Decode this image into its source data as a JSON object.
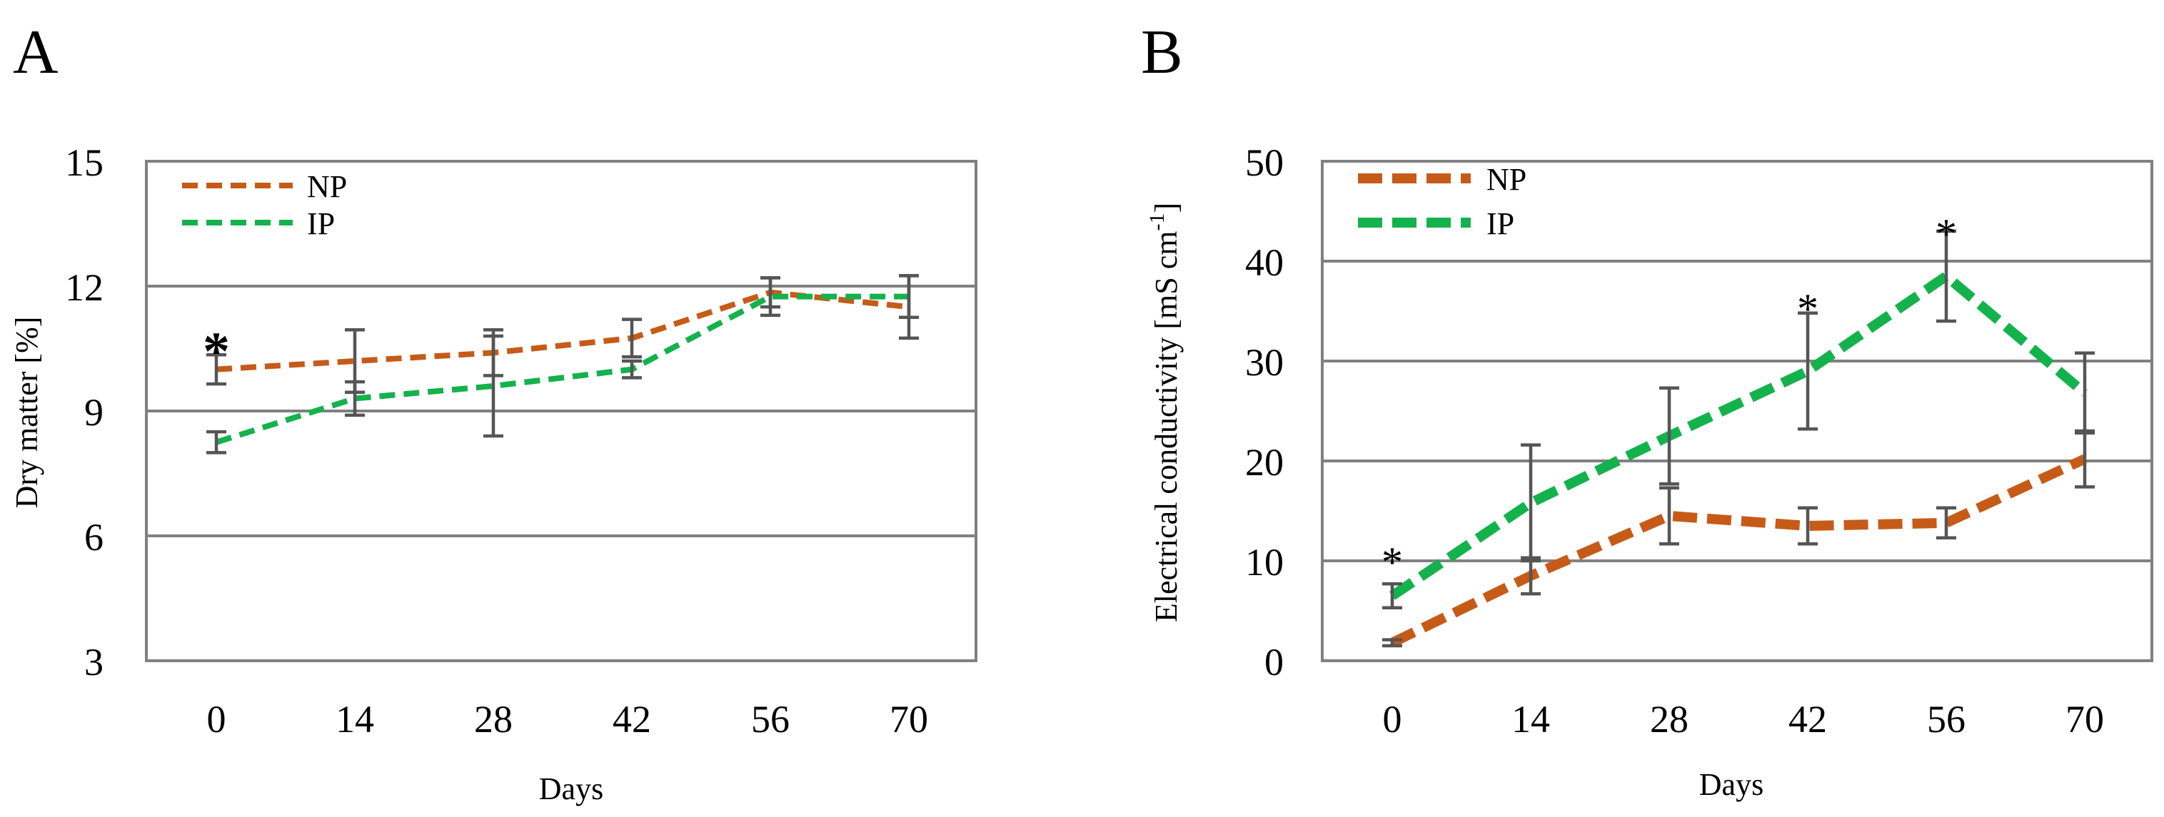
{
  "colors": {
    "np": "#C65B18",
    "ip": "#14B24C",
    "error": "#555555",
    "grid": "#808080"
  },
  "chart_data": [
    {
      "panel": "A",
      "type": "line",
      "xlabel": "Days",
      "ylabel": "Dry matter [%]",
      "categories": [
        "0",
        "14",
        "28",
        "42",
        "56",
        "70"
      ],
      "ylim": [
        3,
        15
      ],
      "yticks": [
        3,
        6,
        9,
        12,
        15
      ],
      "ytick_labels": [
        "3",
        "6",
        "9",
        "12",
        "15"
      ],
      "grid": true,
      "legend_position": "top-left",
      "series": [
        {
          "name": "NP",
          "color": "#C65B18",
          "style": "dashed-thin",
          "values": [
            10.0,
            10.2,
            10.4,
            10.75,
            11.85,
            11.5
          ],
          "errors": [
            0.35,
            0.75,
            0.55,
            0.45,
            0.35,
            0.75
          ]
        },
        {
          "name": "IP",
          "color": "#14B24C",
          "style": "dashed-thin",
          "values": [
            8.25,
            9.3,
            9.6,
            10.0,
            11.75,
            11.75
          ],
          "errors": [
            0.25,
            0.4,
            1.2,
            0.2,
            0.45,
            0.5
          ]
        }
      ],
      "significance": [
        {
          "category": "0",
          "label": "*"
        }
      ]
    },
    {
      "panel": "B",
      "type": "line",
      "xlabel": "Days",
      "ylabel": "Electrical conductivity [mS cm",
      "ylabel_sup": "-1",
      "ylabel_end": "]",
      "categories": [
        "0",
        "14",
        "28",
        "42",
        "56",
        "70"
      ],
      "ylim": [
        0,
        50
      ],
      "yticks": [
        0,
        10,
        20,
        30,
        40,
        50
      ],
      "ytick_labels": [
        "0",
        "10",
        "20",
        "30",
        "40",
        "50"
      ],
      "grid": true,
      "legend_position": "top-left",
      "series": [
        {
          "name": "NP",
          "color": "#C65B18",
          "style": "dashed-thick",
          "values": [
            1.8,
            8.5,
            14.5,
            13.5,
            13.8,
            20.2
          ],
          "errors": [
            0.3,
            1.8,
            2.8,
            1.8,
            1.5,
            2.8
          ]
        },
        {
          "name": "IP",
          "color": "#14B24C",
          "style": "dashed-thick",
          "values": [
            6.5,
            15.8,
            22.5,
            29.0,
            38.5,
            26.8
          ],
          "errors": [
            1.2,
            5.8,
            4.8,
            5.8,
            4.5,
            4.0
          ]
        }
      ],
      "significance": [
        {
          "category": "0",
          "label": "*"
        },
        {
          "category": "42",
          "label": "*"
        },
        {
          "category": "56",
          "label": "*"
        }
      ]
    }
  ]
}
